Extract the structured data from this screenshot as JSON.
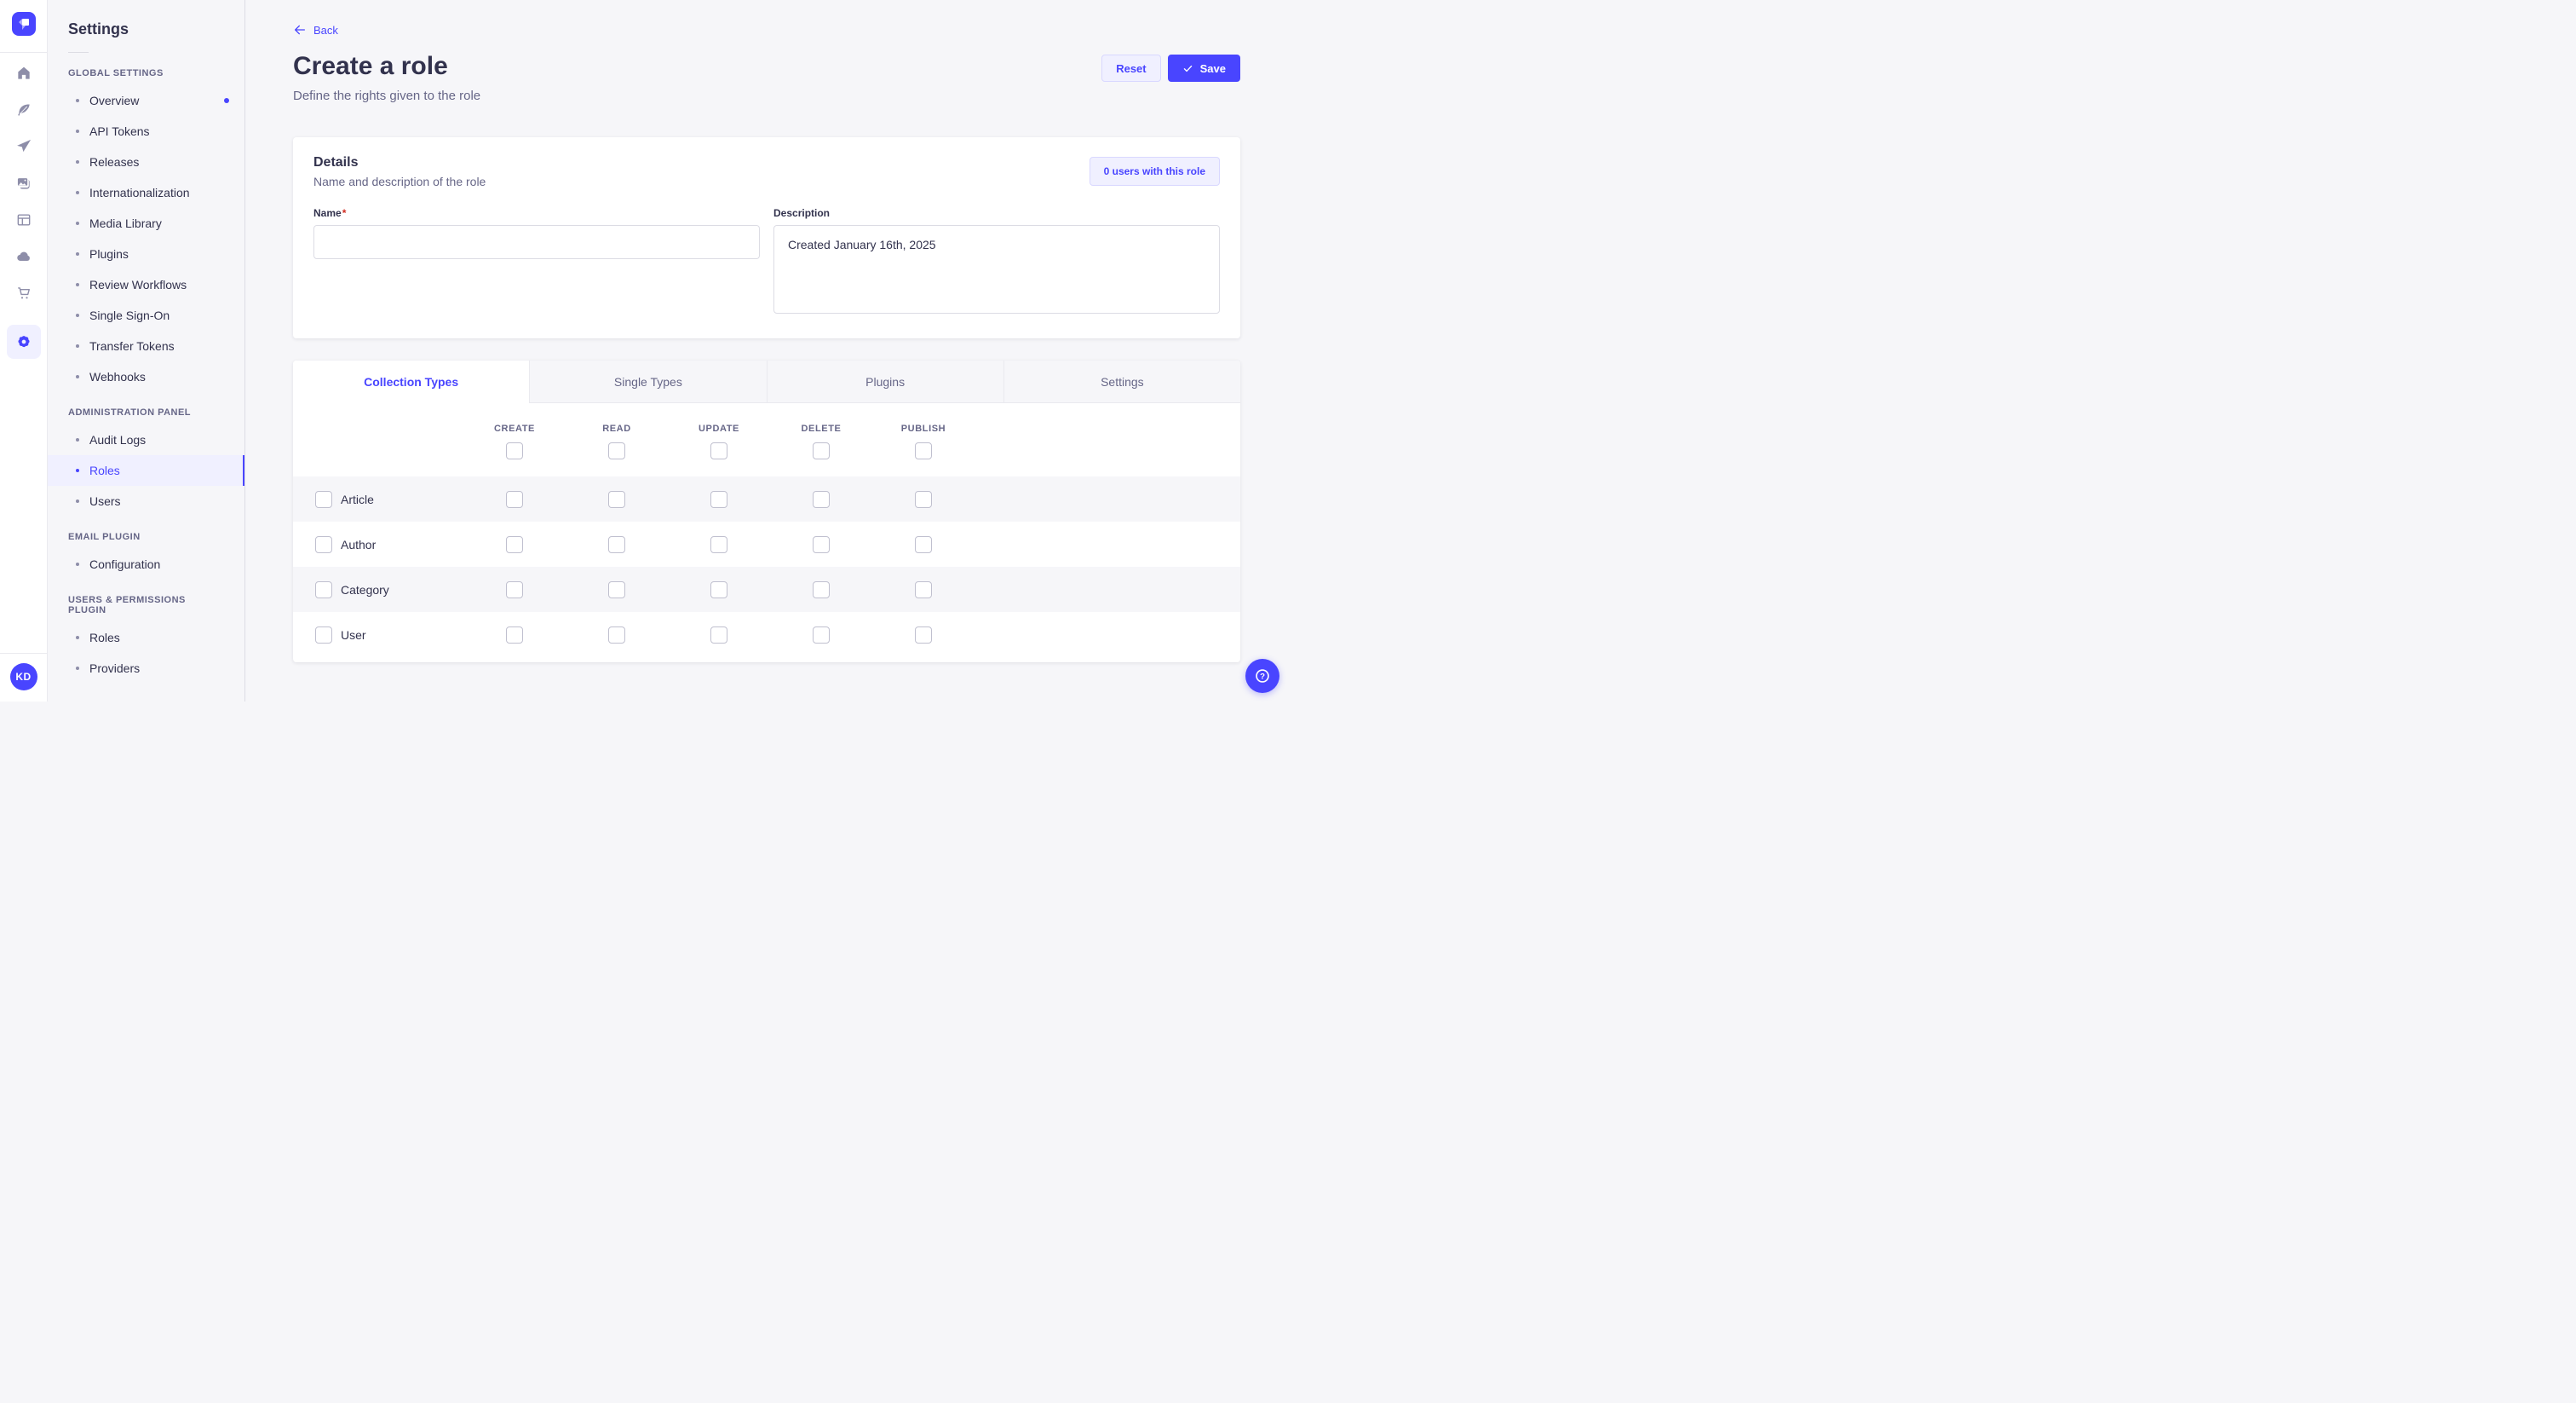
{
  "rail": {
    "icons": [
      "home",
      "content-type-builder",
      "send",
      "media-library",
      "layout",
      "cloud",
      "marketplace-cart",
      "settings-gear"
    ],
    "active_icon": "settings-gear",
    "user_initials": "KD",
    "help_glyph": "?"
  },
  "sidebar": {
    "title": "Settings",
    "sections": [
      {
        "label": "GLOBAL SETTINGS",
        "items": [
          {
            "label": "Overview",
            "notification": true
          },
          {
            "label": "API Tokens"
          },
          {
            "label": "Releases"
          },
          {
            "label": "Internationalization"
          },
          {
            "label": "Media Library"
          },
          {
            "label": "Plugins"
          },
          {
            "label": "Review Workflows"
          },
          {
            "label": "Single Sign-On"
          },
          {
            "label": "Transfer Tokens"
          },
          {
            "label": "Webhooks"
          }
        ]
      },
      {
        "label": "ADMINISTRATION PANEL",
        "items": [
          {
            "label": "Audit Logs"
          },
          {
            "label": "Roles",
            "active": true
          },
          {
            "label": "Users"
          }
        ]
      },
      {
        "label": "EMAIL PLUGIN",
        "items": [
          {
            "label": "Configuration"
          }
        ]
      },
      {
        "label": "USERS & PERMISSIONS PLUGIN",
        "items": [
          {
            "label": "Roles"
          },
          {
            "label": "Providers"
          }
        ]
      }
    ]
  },
  "header": {
    "back": "Back",
    "title": "Create a role",
    "subtitle": "Define the rights given to the role",
    "reset_label": "Reset",
    "save_label": "Save"
  },
  "details": {
    "title": "Details",
    "subtitle": "Name and description of the role",
    "users_badge": "0 users with this role",
    "name_label": "Name",
    "required_mark": "*",
    "name_value": "",
    "description_label": "Description",
    "description_value": "Created January 16th, 2025"
  },
  "tabs": [
    {
      "label": "Collection Types",
      "active": true
    },
    {
      "label": "Single Types",
      "active": false
    },
    {
      "label": "Plugins",
      "active": false
    },
    {
      "label": "Settings",
      "active": false
    }
  ],
  "permissions": {
    "columns": [
      "CREATE",
      "READ",
      "UPDATE",
      "DELETE",
      "PUBLISH"
    ],
    "rows": [
      {
        "label": "Article"
      },
      {
        "label": "Author"
      },
      {
        "label": "Category"
      },
      {
        "label": "User"
      }
    ]
  },
  "colors": {
    "primary": "#4945ff",
    "primary_light": "#f0f0ff",
    "primary_border": "#d9d8ff",
    "page_bg": "#f6f6f9",
    "text_dark": "#32324d",
    "text_muted": "#666687",
    "border": "#eaeaef",
    "checkbox_border": "#c0c0cf",
    "required_red": "#d02b20"
  }
}
